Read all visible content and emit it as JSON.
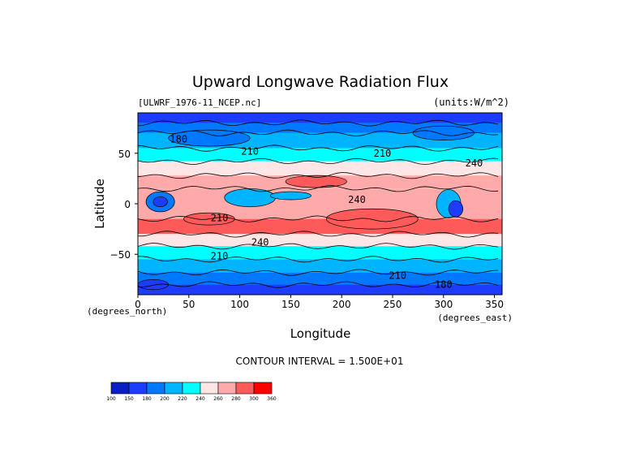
{
  "chart_data": {
    "type": "heatmap",
    "title": "Upward Longwave Radiation Flux",
    "file_label": "[ULWRF_1976-11_NCEP.nc]",
    "units_label": "(units:W/m^2)",
    "xlabel": "Longitude",
    "ylabel": "Latitude",
    "x_units": "(degrees_east)",
    "y_units": "(degrees_north)",
    "x_ticks": [
      0,
      50,
      100,
      150,
      200,
      250,
      300,
      350
    ],
    "y_ticks": [
      50,
      0,
      -50
    ],
    "xlim": [
      0,
      357.5
    ],
    "ylim": [
      -90,
      90
    ],
    "contour_interval_text": "CONTOUR INTERVAL = 1.500E+01",
    "contour_interval": 15,
    "contour_labels": [
      "180",
      "210",
      "210",
      "240",
      "240",
      "210",
      "240",
      "210",
      "210",
      "180"
    ],
    "colorbar": {
      "levels": [
        100,
        150,
        180,
        200,
        220,
        240,
        260,
        280,
        300,
        360
      ],
      "colors": [
        "#0a1ec8",
        "#1e3cff",
        "#0078ff",
        "#00b4ff",
        "#00ffff",
        "#ffe6e6",
        "#ffaaaa",
        "#ff5a5a",
        "#ff0000"
      ]
    },
    "bands": [
      {
        "lat": [
          90,
          80
        ],
        "value": 175
      },
      {
        "lat": [
          80,
          70
        ],
        "value": 195
      },
      {
        "lat": [
          70,
          55
        ],
        "value": 210
      },
      {
        "lat": [
          55,
          42
        ],
        "value": 222
      },
      {
        "lat": [
          42,
          28
        ],
        "value": 250
      },
      {
        "lat": [
          28,
          15
        ],
        "value": 275
      },
      {
        "lat": [
          15,
          -15
        ],
        "value": 265
      },
      {
        "lat": [
          -15,
          -30
        ],
        "value": 285
      },
      {
        "lat": [
          -30,
          -42
        ],
        "value": 255
      },
      {
        "lat": [
          -42,
          -55
        ],
        "value": 225
      },
      {
        "lat": [
          -55,
          -68
        ],
        "value": 205
      },
      {
        "lat": [
          -68,
          -80
        ],
        "value": 190
      },
      {
        "lat": [
          -80,
          -90
        ],
        "value": 165
      }
    ],
    "features": [
      {
        "lon": 22,
        "lat": 2,
        "rlon": 14,
        "rlat": 10,
        "value": 195
      },
      {
        "lon": 22,
        "lat": 2,
        "rlon": 7,
        "rlat": 5,
        "value": 160
      },
      {
        "lon": 110,
        "lat": 6,
        "rlon": 25,
        "rlat": 9,
        "value": 205
      },
      {
        "lon": 150,
        "lat": 8,
        "rlon": 20,
        "rlat": 4,
        "value": 210
      },
      {
        "lon": 305,
        "lat": 0,
        "rlon": 12,
        "rlat": 14,
        "value": 205
      },
      {
        "lon": 312,
        "lat": -5,
        "rlon": 7,
        "rlat": 8,
        "value": 175
      },
      {
        "lon": 230,
        "lat": -15,
        "rlon": 45,
        "rlat": 10,
        "value": 290
      },
      {
        "lon": 70,
        "lat": -15,
        "rlon": 25,
        "rlat": 6,
        "value": 290
      },
      {
        "lon": 175,
        "lat": 22,
        "rlon": 30,
        "rlat": 6,
        "value": 285
      },
      {
        "lon": 70,
        "lat": 65,
        "rlon": 40,
        "rlat": 8,
        "value": 180
      },
      {
        "lon": 300,
        "lat": 70,
        "rlon": 30,
        "rlat": 7,
        "value": 185
      },
      {
        "lon": 15,
        "lat": -80,
        "rlon": 15,
        "rlat": 5,
        "value": 150
      }
    ]
  }
}
